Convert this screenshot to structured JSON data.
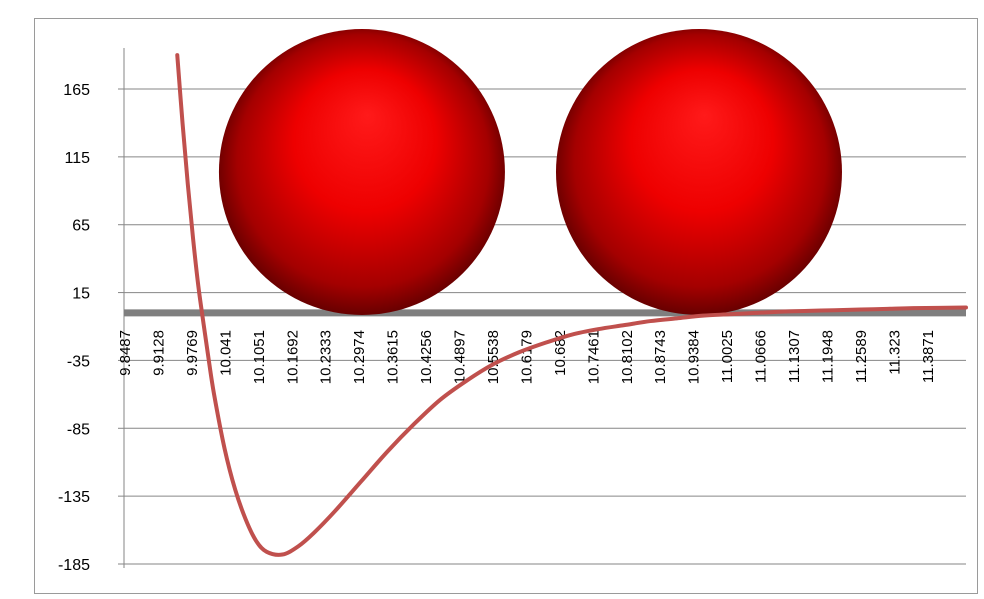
{
  "chart_data": {
    "type": "line",
    "title": "",
    "xlabel": "",
    "ylabel": "",
    "ylim": [
      -185,
      190
    ],
    "y_ticks": [
      165,
      115,
      65,
      15,
      -35,
      -85,
      -135,
      -185
    ],
    "x_tick_labels": [
      "9.8487",
      "9.9128",
      "9.9769",
      "10.041",
      "10.1051",
      "10.1692",
      "10.2333",
      "10.2974",
      "10.3615",
      "10.4256",
      "10.4897",
      "10.5538",
      "10.6179",
      "10.682",
      "10.7461",
      "10.8102",
      "10.8743",
      "10.9384",
      "11.0025",
      "11.0666",
      "11.1307",
      "11.1948",
      "11.2589",
      "11.323",
      "11.3871"
    ],
    "x_range": [
      9.8487,
      11.45
    ],
    "grid": true,
    "series": [
      {
        "color": "#c0504d",
        "x": [
          9.95,
          9.96,
          9.97,
          9.98,
          9.99,
          10.0,
          10.01,
          10.02,
          10.04,
          10.06,
          10.08,
          10.1,
          10.12,
          10.15,
          10.18,
          10.21,
          10.25,
          10.3,
          10.35,
          10.4,
          10.45,
          10.5,
          10.55,
          10.6,
          10.65,
          10.7,
          10.75,
          10.8,
          10.85,
          10.9,
          10.95,
          11.0,
          11.05,
          11.1,
          11.15,
          11.2,
          11.25,
          11.3,
          11.35,
          11.45
        ],
        "values": [
          190,
          140,
          95,
          55,
          20,
          -8,
          -35,
          -60,
          -100,
          -130,
          -152,
          -168,
          -176,
          -178,
          -172,
          -162,
          -146,
          -124,
          -102,
          -82,
          -64,
          -50,
          -38,
          -29,
          -22,
          -16,
          -12,
          -9,
          -6,
          -4,
          -2,
          -1,
          0,
          1,
          1.5,
          2,
          2.5,
          3,
          3.5,
          4
        ]
      },
      {
        "color": "#7f7f7f",
        "x": [
          9.8487,
          11.45
        ],
        "values": [
          0,
          0
        ]
      }
    ],
    "annotations": [
      {
        "kind": "sphere",
        "color": "#ff0000",
        "center_x": 10.2974,
        "center_y": 105,
        "radius_x": 0.14
      },
      {
        "kind": "sphere",
        "color": "#ff0000",
        "center_x": 10.9384,
        "center_y": 105,
        "radius_x": 0.14
      }
    ]
  }
}
